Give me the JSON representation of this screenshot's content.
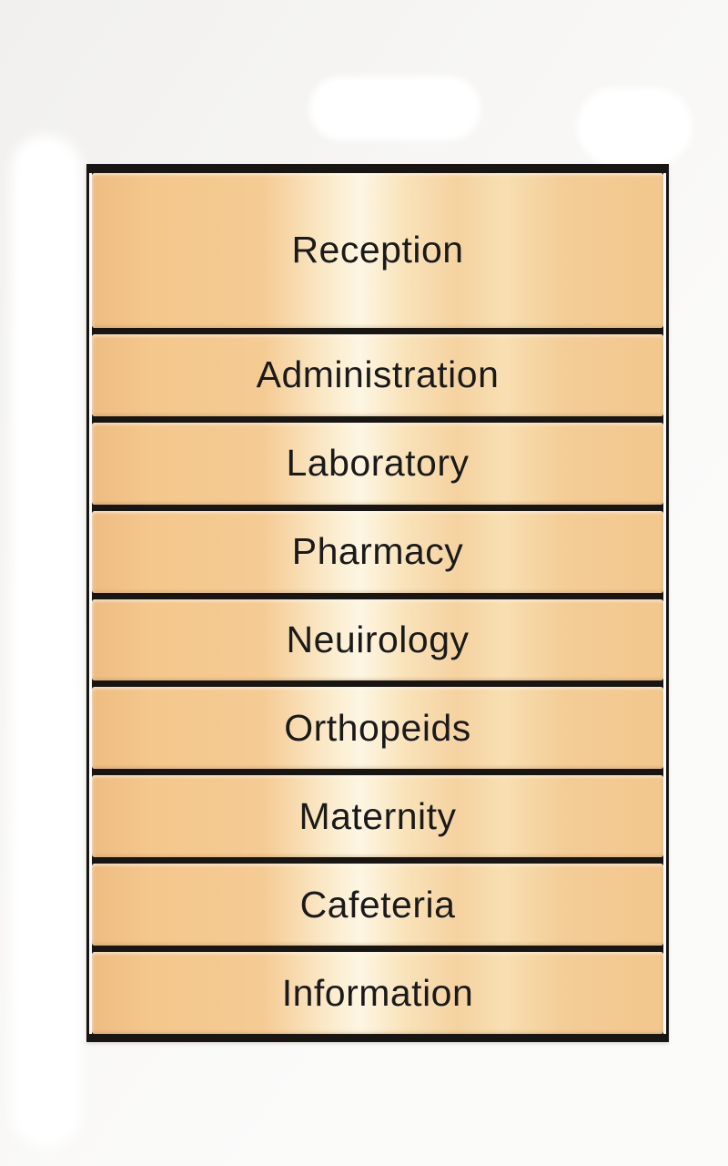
{
  "sign": {
    "kind": "hospital-directory-board",
    "rows": [
      {
        "label": "Reception"
      },
      {
        "label": "Administration"
      },
      {
        "label": "Laboratory"
      },
      {
        "label": "Pharmacy"
      },
      {
        "label": "Neuirology"
      },
      {
        "label": "Orthopeids"
      },
      {
        "label": "Maternity"
      },
      {
        "label": "Cafeteria"
      },
      {
        "label": "Information"
      }
    ]
  },
  "colors": {
    "panel_tan": "#f3c78d",
    "panel_sheen": "#fdf6e3",
    "panel_edge_dark": "#eebc82",
    "frame_black": "#181512",
    "text": "#1c1a18",
    "background": "#f7f6f4",
    "blob_white": "#ffffff"
  }
}
